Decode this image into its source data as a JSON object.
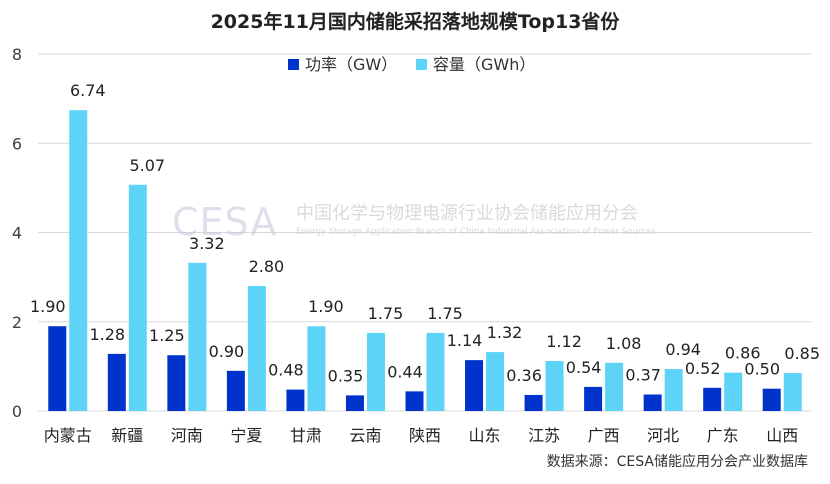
{
  "chart_data": {
    "type": "bar",
    "title": "2025年11月国内储能采招落地规模Top13省份",
    "categories": [
      "内蒙古",
      "新疆",
      "河南",
      "宁夏",
      "甘肃",
      "云南",
      "陕西",
      "山东",
      "江苏",
      "广西",
      "河北",
      "广东",
      "山西"
    ],
    "series": [
      {
        "name": "功率（GW）",
        "color": "#0033cc",
        "values": [
          1.9,
          1.28,
          1.25,
          0.9,
          0.48,
          0.35,
          0.44,
          1.14,
          0.36,
          0.54,
          0.37,
          0.52,
          0.5
        ],
        "labels": [
          "1.90",
          "1.28",
          "1.25",
          "0.90",
          "0.48",
          "0.35",
          "0.44",
          "1.14",
          "0.36",
          "0.54",
          "0.37",
          "0.52",
          "0.50"
        ]
      },
      {
        "name": "容量（GWh）",
        "color": "#5dd3f8",
        "values": [
          6.74,
          5.07,
          3.32,
          2.8,
          1.9,
          1.75,
          1.75,
          1.32,
          1.12,
          1.08,
          0.94,
          0.86,
          0.85
        ],
        "labels": [
          "6.74",
          "5.07",
          "3.32",
          "2.80",
          "1.90",
          "1.75",
          "1.75",
          "1.32",
          "1.12",
          "1.08",
          "0.94",
          "0.86",
          "0.85"
        ]
      }
    ],
    "ylim": [
      0,
      8
    ],
    "yticks": [
      0,
      2,
      4,
      6,
      8
    ],
    "xlabel": "",
    "ylabel": "",
    "grid": true,
    "legend": "top-center",
    "watermark": {
      "logo": "CESA",
      "name_cn": "中国化学与物理电源行业协会储能应用分会",
      "name_en": "Energy Storage Application Branch of China Industrial Association of Power Sources"
    },
    "source": "数据来源：CESA储能应用分会产业数据库"
  }
}
